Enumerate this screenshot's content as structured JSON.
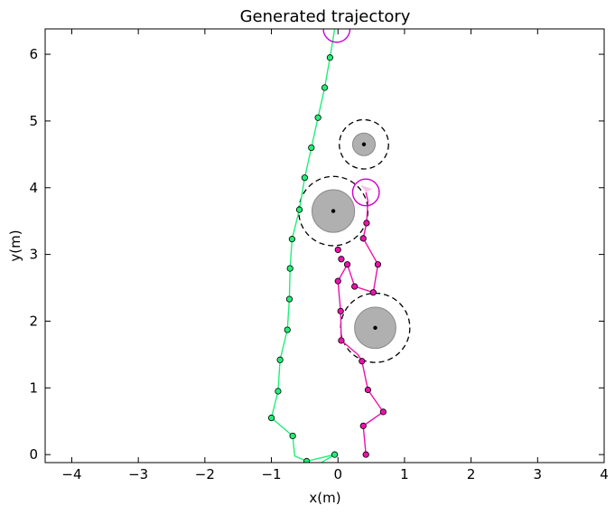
{
  "chart_data": {
    "type": "scatter",
    "title": "Generated trajectory",
    "xlabel": "x(m)",
    "ylabel": "y(m)",
    "xlim": [
      -4.4,
      4.0
    ],
    "ylim": [
      -0.12,
      6.38
    ],
    "xticks": [
      -4,
      -3,
      -2,
      -1,
      0,
      1,
      2,
      3,
      4
    ],
    "yticks": [
      0,
      1,
      2,
      3,
      4,
      5,
      6
    ],
    "xtick_labels": [
      "−4",
      "−3",
      "−2",
      "−1",
      "0",
      "1",
      "2",
      "3",
      "4"
    ],
    "ytick_labels": [
      "0",
      "1",
      "2",
      "3",
      "4",
      "5",
      "6"
    ],
    "grid": false,
    "series": [
      {
        "color": "#22ee77",
        "line": [
          [
            -0.3,
            -0.15
          ],
          [
            -0.05,
            0.0
          ],
          [
            -0.47,
            -0.1
          ],
          [
            -0.65,
            -0.02
          ],
          [
            -0.68,
            0.28
          ],
          [
            -1.0,
            0.55
          ],
          [
            -0.9,
            0.95
          ],
          [
            -0.87,
            1.42
          ],
          [
            -0.76,
            1.87
          ],
          [
            -0.73,
            2.33
          ],
          [
            -0.72,
            2.79
          ],
          [
            -0.69,
            3.23
          ],
          [
            -0.58,
            3.67
          ],
          [
            -0.5,
            4.15
          ],
          [
            -0.4,
            4.6
          ],
          [
            -0.3,
            5.05
          ],
          [
            -0.2,
            5.5
          ],
          [
            -0.12,
            5.95
          ],
          [
            -0.05,
            6.38
          ]
        ],
        "markers": [
          [
            -0.05,
            0.0
          ],
          [
            -0.47,
            -0.1
          ],
          [
            -0.68,
            0.28
          ],
          [
            -1.0,
            0.55
          ],
          [
            -0.9,
            0.95
          ],
          [
            -0.87,
            1.42
          ],
          [
            -0.76,
            1.87
          ],
          [
            -0.73,
            2.33
          ],
          [
            -0.72,
            2.79
          ],
          [
            -0.69,
            3.23
          ],
          [
            -0.58,
            3.67
          ],
          [
            -0.5,
            4.15
          ],
          [
            -0.4,
            4.6
          ],
          [
            -0.3,
            5.05
          ],
          [
            -0.2,
            5.5
          ],
          [
            -0.12,
            5.95
          ]
        ]
      },
      {
        "color": "#ee11aa",
        "line": [
          [
            0.42,
            0.0
          ],
          [
            0.38,
            0.43
          ],
          [
            0.68,
            0.64
          ],
          [
            0.45,
            0.97
          ],
          [
            0.36,
            1.4
          ],
          [
            0.3,
            1.5
          ],
          [
            0.05,
            1.71
          ],
          [
            0.04,
            2.15
          ],
          [
            0.0,
            2.6
          ],
          [
            0.14,
            2.85
          ],
          [
            0.25,
            2.52
          ],
          [
            0.53,
            2.43
          ],
          [
            0.6,
            2.85
          ],
          [
            0.38,
            3.24
          ],
          [
            0.43,
            3.47
          ],
          [
            0.45,
            3.8
          ],
          [
            0.42,
            3.93
          ]
        ],
        "markers": [
          [
            0.42,
            0.0
          ],
          [
            0.38,
            0.43
          ],
          [
            0.68,
            0.64
          ],
          [
            0.45,
            0.97
          ],
          [
            0.36,
            1.4
          ],
          [
            0.05,
            1.71
          ],
          [
            0.04,
            2.15
          ],
          [
            0.0,
            2.6
          ],
          [
            0.14,
            2.85
          ],
          [
            0.25,
            2.52
          ],
          [
            0.53,
            2.43
          ],
          [
            0.6,
            2.85
          ],
          [
            0.38,
            3.24
          ],
          [
            0.43,
            3.47
          ],
          [
            0.05,
            2.93
          ],
          [
            0.0,
            3.07
          ]
        ]
      }
    ],
    "obstacles": [
      {
        "x": 0.56,
        "y": 1.9,
        "r": 0.31,
        "safety_r": 0.52
      },
      {
        "x": -0.07,
        "y": 3.65,
        "r": 0.32,
        "safety_r": 0.52
      },
      {
        "x": 0.39,
        "y": 4.65,
        "r": 0.17,
        "safety_r": 0.37
      }
    ],
    "goals": [
      {
        "color": "#cc00cc",
        "x": -0.02,
        "y": 6.38,
        "r": 0.2
      },
      {
        "color": "#cc00cc",
        "x": 0.42,
        "y": 3.93,
        "r": 0.2
      }
    ],
    "colors": {
      "obstacle_fill": "#b0b0b0",
      "obstacle_edge": "#888888",
      "marker_edge": "#000000"
    }
  }
}
